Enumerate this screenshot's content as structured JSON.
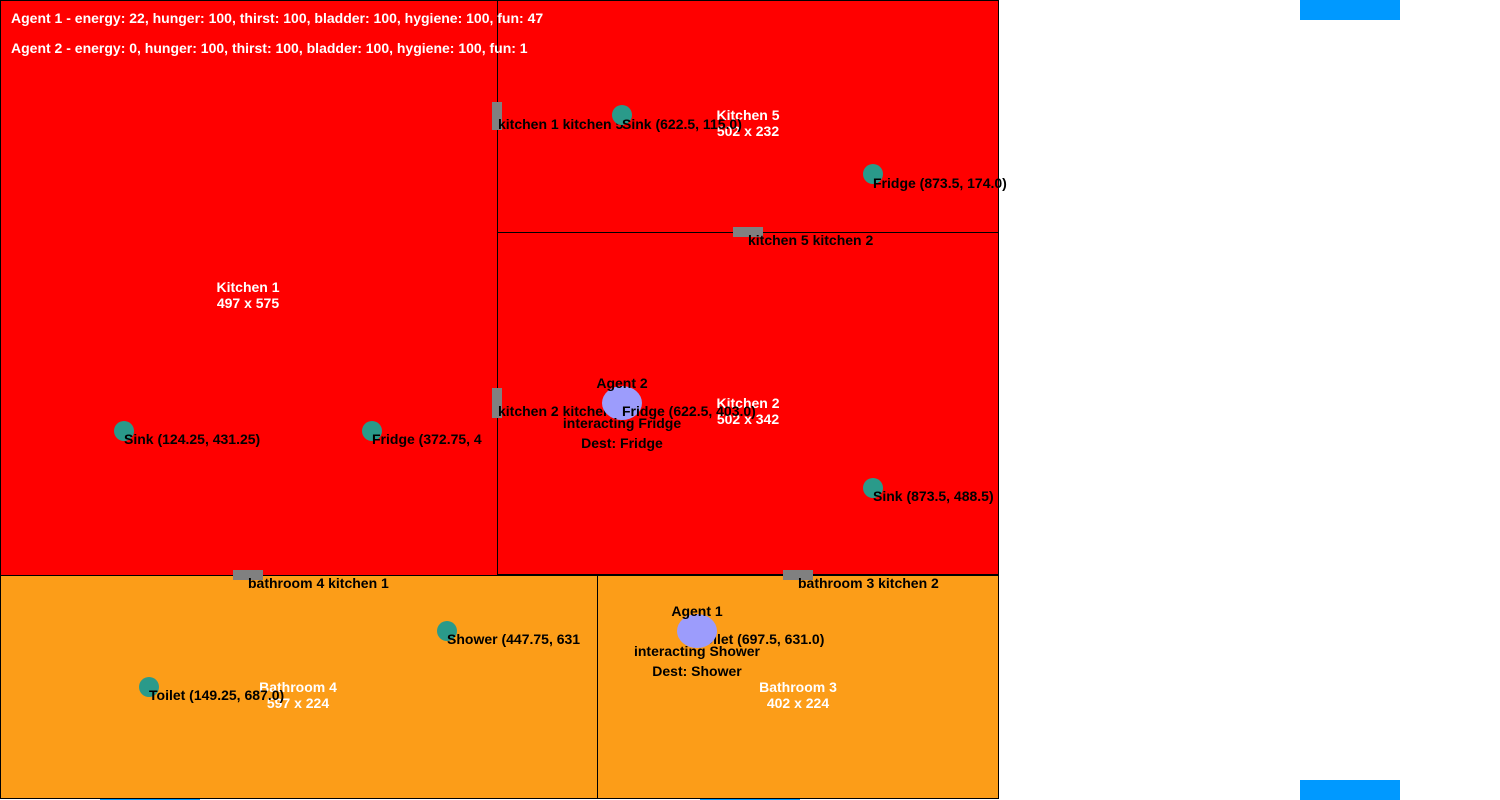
{
  "colors": {
    "kitchen": "#ff0000",
    "bathroom": "#fc9d18",
    "object": "#2a9a8a",
    "agent": "#9c9cfc",
    "door": "#808080",
    "edge_marker": "#0099ff"
  },
  "status": {
    "agent1": "Agent 1 - energy: 22, hunger: 100, thirst: 100, bladder: 100, hygiene: 100, fun: 47",
    "agent2": "Agent 2 - energy: 0, hunger: 100, thirst: 100, bladder: 100, hygiene: 100, fun: 1"
  },
  "rooms": {
    "kitchen1": {
      "name": "Kitchen 1",
      "size": "497 x 575"
    },
    "kitchen5": {
      "name": "Kitchen 5",
      "size": "502 x 232"
    },
    "kitchen2": {
      "name": "Kitchen 2",
      "size": "502 x 342"
    },
    "bathroom4": {
      "name": "Bathroom 4",
      "size": "597 x 224"
    },
    "bathroom3": {
      "name": "Bathroom 3",
      "size": "402 x 224"
    }
  },
  "doors": {
    "k1_k5": "kitchen 1 kitchen 5",
    "k5_k2": "kitchen 5 kitchen 2",
    "k2_k1": "kitchen 2 kitchen 1",
    "b4_k1": "bathroom 4 kitchen 1",
    "b3_k2": "bathroom 3 kitchen 2"
  },
  "objects": {
    "k5_sink": "Sink (622.5, 115.0)",
    "k5_fridge": "Fridge (873.5, 174.0)",
    "k2_fridge": "Fridge (622.5, 403.0)",
    "k2_sink": "Sink (873.5, 488.5)",
    "k1_sink": "Sink (124.25, 431.25)",
    "k1_fridge": "Fridge (372.75, 4",
    "b4_shower": "Shower (447.75, 631",
    "b4_toilet": "Toilet (149.25, 687.0)",
    "b3_toilet": "Toilet (697.5, 631.0)"
  },
  "agents": {
    "agent1": {
      "name": "Agent 1",
      "state": "interacting Shower",
      "dest": "Dest: Shower"
    },
    "agent2": {
      "name": "Agent 2",
      "state": "interacting Fridge",
      "dest": "Dest: Fridge"
    }
  }
}
